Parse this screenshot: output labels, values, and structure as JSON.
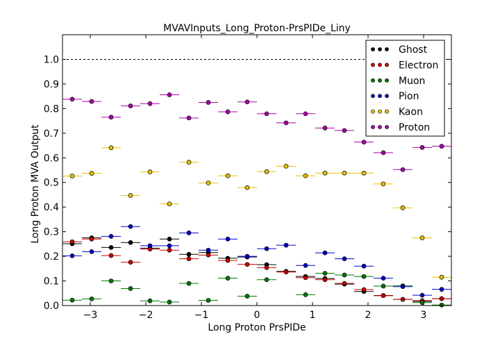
{
  "chart_data": {
    "type": "scatter",
    "title": "MVAVInputs_Long_Proton-PrsPIDe_Liny",
    "xlabel": "Long Proton PrsPIDe",
    "ylabel": "Long Proton MVA Output",
    "xlim": [
      -3.5,
      3.5
    ],
    "ylim": [
      0.0,
      1.1
    ],
    "xticks": [
      -3,
      -2,
      -1,
      0,
      1,
      2,
      3
    ],
    "xtick_labels": [
      "−3",
      "−2",
      "−1",
      "0",
      "1",
      "2",
      "3"
    ],
    "yticks": [
      0.0,
      0.1,
      0.2,
      0.3,
      0.4,
      0.5,
      0.6,
      0.7,
      0.8,
      0.9,
      1.0
    ],
    "ytick_labels": [
      "0.0",
      "0.1",
      "0.2",
      "0.3",
      "0.4",
      "0.5",
      "0.6",
      "0.7",
      "0.8",
      "0.9",
      "1.0"
    ],
    "reference_line_y": 1.0,
    "legend_position": "top-right",
    "bin_half_width": 0.175,
    "x": [
      -3.325,
      -2.975,
      -2.625,
      -2.275,
      -1.925,
      -1.575,
      -1.225,
      -0.875,
      -0.525,
      -0.175,
      0.175,
      0.525,
      0.875,
      1.225,
      1.575,
      1.925,
      2.275,
      2.625,
      2.975,
      3.325
    ],
    "series": [
      {
        "name": "Ghost",
        "color": "#000000",
        "values": [
          0.251,
          0.275,
          0.236,
          0.256,
          0.233,
          0.27,
          0.208,
          0.215,
          0.192,
          0.197,
          0.166,
          0.139,
          0.118,
          0.11,
          0.087,
          0.057,
          0.041,
          0.025,
          0.017,
          0.028
        ]
      },
      {
        "name": "Electron",
        "color": "#cc0000",
        "values": [
          0.259,
          0.27,
          0.203,
          0.176,
          0.229,
          0.225,
          0.19,
          0.205,
          0.183,
          0.167,
          0.154,
          0.136,
          0.113,
          0.105,
          0.09,
          0.065,
          0.04,
          0.025,
          0.02,
          0.028
        ]
      },
      {
        "name": "Muon",
        "color": "#007700",
        "values": [
          0.022,
          0.027,
          0.1,
          0.069,
          0.019,
          0.014,
          0.09,
          0.021,
          0.111,
          0.038,
          0.105,
          null,
          0.044,
          0.131,
          0.124,
          0.118,
          0.079,
          0.08,
          0.012,
          0.002
        ]
      },
      {
        "name": "Pion",
        "color": "#0000cc",
        "values": [
          0.202,
          0.219,
          0.281,
          0.321,
          0.243,
          0.243,
          0.295,
          0.225,
          0.27,
          0.2,
          0.231,
          0.245,
          0.163,
          0.214,
          0.19,
          0.16,
          0.111,
          0.077,
          0.042,
          0.066
        ]
      },
      {
        "name": "Kaon",
        "color": "#e6c000",
        "values": [
          0.526,
          0.537,
          0.641,
          0.447,
          0.543,
          0.413,
          0.582,
          0.498,
          0.527,
          0.479,
          0.544,
          0.566,
          0.527,
          0.538,
          0.538,
          0.538,
          0.494,
          0.397,
          0.275,
          0.115
        ]
      },
      {
        "name": "Proton",
        "color": "#aa00aa",
        "values": [
          0.838,
          0.829,
          0.765,
          0.811,
          0.82,
          0.856,
          0.762,
          0.825,
          0.787,
          0.827,
          0.779,
          0.742,
          0.779,
          0.721,
          0.711,
          0.664,
          0.621,
          0.552,
          0.642,
          0.647
        ]
      }
    ]
  }
}
